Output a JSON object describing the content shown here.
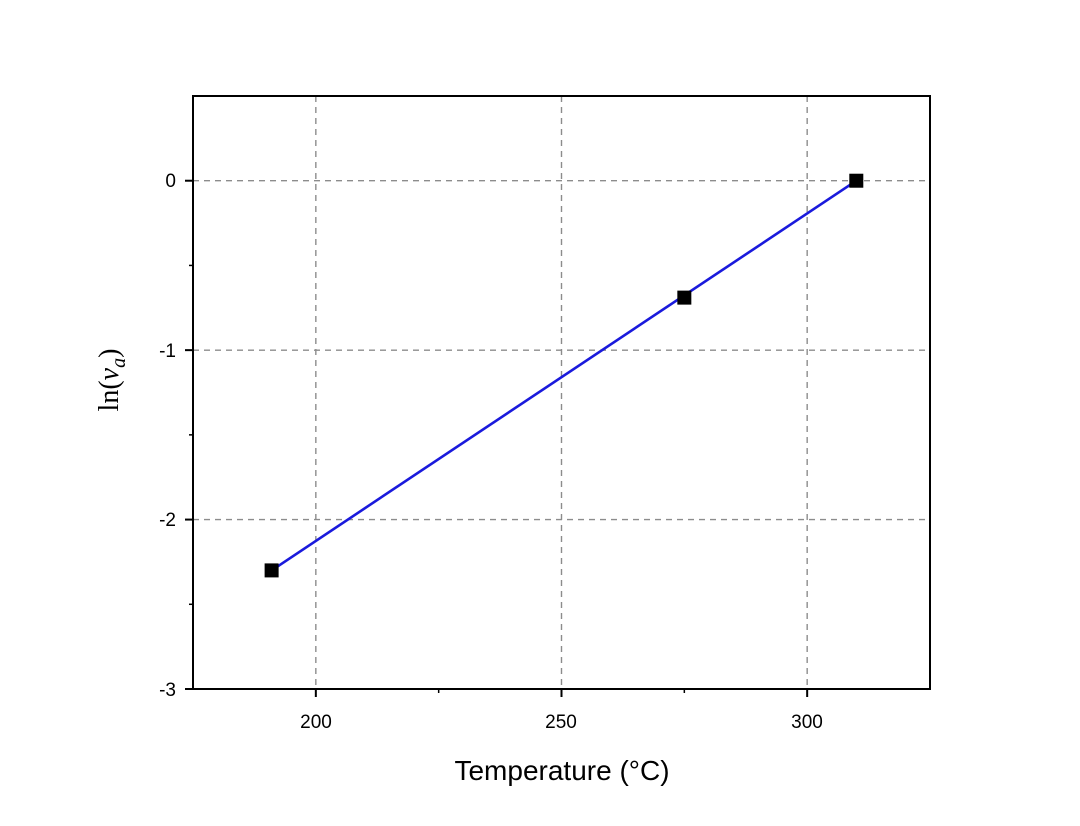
{
  "chart_data": {
    "type": "scatter",
    "xlabel": "Temperature (°C)",
    "ylabel": {
      "prefix": "ln(",
      "var": "v",
      "sub": "a",
      "suffix": ")"
    },
    "xlim": [
      175,
      325
    ],
    "ylim": [
      -3,
      0.5
    ],
    "xticks": [
      200,
      250,
      300
    ],
    "yticks": [
      0,
      -1,
      -2,
      -3
    ],
    "xtick_labels": [
      "200",
      "250",
      "300"
    ],
    "ytick_labels": [
      "0",
      "-1",
      "-2",
      "-3"
    ],
    "x_minor_ticks": [
      225,
      275
    ],
    "y_minor_ticks": [
      -0.5,
      -1.5,
      -2.5
    ],
    "grid": true,
    "series": [
      {
        "points": [
          [
            191,
            -2.3
          ],
          [
            275,
            -0.69
          ],
          [
            310,
            0
          ]
        ],
        "marker": "square",
        "color": "#000000"
      }
    ],
    "fit_line": {
      "x": [
        191,
        310
      ],
      "y": [
        -2.3,
        0
      ],
      "color": "#1a1adc"
    }
  }
}
